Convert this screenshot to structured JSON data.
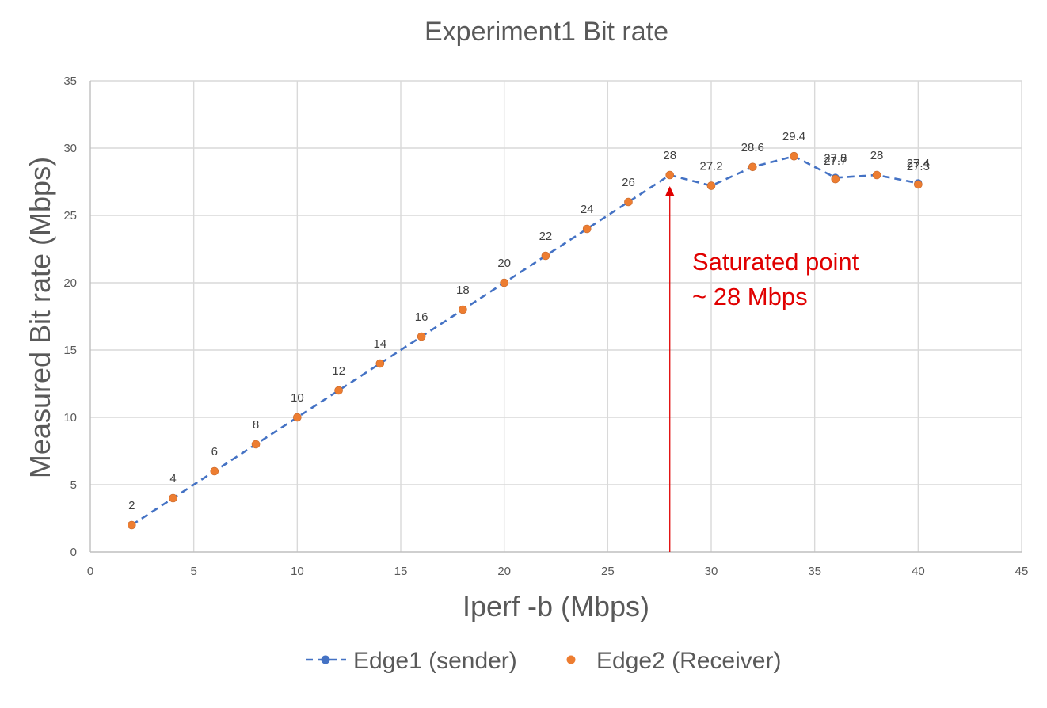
{
  "chart_data": {
    "type": "line",
    "title": "Experiment1 Bit rate",
    "xlabel": "Iperf -b (Mbps)",
    "ylabel": "Measured Bit rate (Mbps)",
    "xlim": [
      0,
      45
    ],
    "ylim": [
      0,
      35
    ],
    "xticks": [
      0,
      5,
      10,
      15,
      20,
      25,
      30,
      35,
      40,
      45
    ],
    "yticks": [
      0,
      5,
      10,
      15,
      20,
      25,
      30,
      35
    ],
    "grid": true,
    "legend_position": "bottom",
    "series": [
      {
        "name": "Edge1 (sender)",
        "color": "#4472c4",
        "style": "dashed-line-with-markers",
        "x": [
          2,
          4,
          6,
          8,
          10,
          12,
          14,
          16,
          18,
          20,
          22,
          24,
          26,
          28,
          30,
          32,
          34,
          36,
          38,
          40
        ],
        "y": [
          2,
          4,
          6,
          8,
          10,
          12,
          14,
          16,
          18,
          20,
          22,
          24,
          26,
          28,
          27.2,
          28.6,
          29.4,
          27.8,
          28,
          27.4
        ],
        "labels": [
          "2",
          "4",
          "6",
          "8",
          "10",
          "12",
          "14",
          "16",
          "18",
          "20",
          "22",
          "24",
          "26",
          "28",
          "27.2",
          "28.6",
          "29.4",
          "27.8",
          "28",
          "27.4"
        ]
      },
      {
        "name": "Edge2 (Receiver)",
        "color": "#ed7d31",
        "style": "markers",
        "x": [
          2,
          4,
          6,
          8,
          10,
          12,
          14,
          16,
          18,
          20,
          22,
          24,
          26,
          28,
          30,
          32,
          34,
          36,
          38,
          40
        ],
        "y": [
          2,
          4,
          6,
          8,
          10,
          12,
          14,
          16,
          18,
          20,
          22,
          24,
          26,
          28,
          27.2,
          28.6,
          29.4,
          27.7,
          28,
          27.3
        ],
        "labels": [
          "",
          "",
          "",
          "",
          "",
          "",
          "",
          "",
          "",
          "",
          "",
          "",
          "",
          "",
          "",
          "",
          "",
          "27.7",
          "",
          "27.3"
        ]
      }
    ],
    "annotation": {
      "lines": [
        "Saturated point",
        "~ 28 Mbps"
      ],
      "color": "#e00000",
      "arrow_x": 28,
      "arrow_from_y": 0,
      "arrow_to_y": 28
    }
  }
}
